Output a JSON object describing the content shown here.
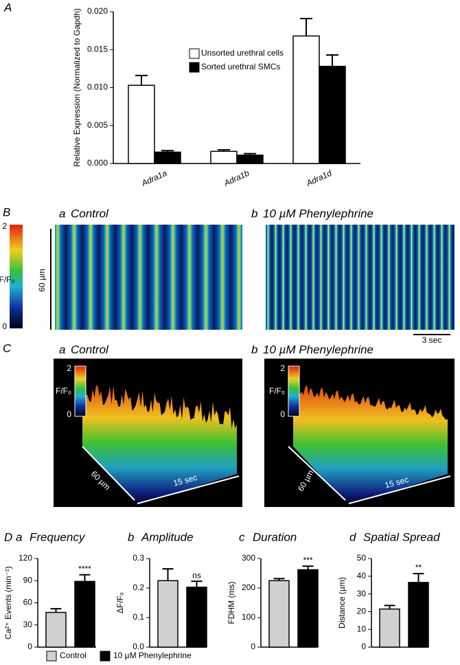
{
  "chart_data": [
    {
      "type": "grouped_bar",
      "panel": "A",
      "ylabel": "Relative Expression (Normalized to Gapdh)",
      "categories": [
        "Adra1a",
        "Adra1b",
        "Adra1d"
      ],
      "series": [
        {
          "name": "Unsorted urethral cells",
          "color": "#ffffff",
          "values": [
            0.0103,
            0.0016,
            0.0168
          ],
          "errors": [
            0.0013,
            0.0002,
            0.0023
          ]
        },
        {
          "name": "Sorted urethral SMCs",
          "color": "#000000",
          "values": [
            0.0015,
            0.0011,
            0.0128
          ],
          "errors": [
            0.0002,
            0.0002,
            0.0015
          ]
        }
      ],
      "ylim": [
        0,
        0.02
      ],
      "yticks": [
        {
          "value": 0,
          "label": "0.000"
        },
        {
          "value": 0.005,
          "label": "0.005"
        },
        {
          "value": 0.01,
          "label": "0.010"
        },
        {
          "value": 0.015,
          "label": "0.015"
        },
        {
          "value": 0.02,
          "label": "0.020"
        }
      ],
      "legend": "upper-center"
    },
    {
      "type": "bar",
      "panel": "D",
      "sublabel": "a",
      "title": "Frequency",
      "ylabel": "Ca²⁺ Events (min⁻¹)",
      "values": [
        47,
        89
      ],
      "errors": [
        5,
        9
      ],
      "annotation": "****",
      "ylim": [
        0,
        120
      ],
      "yticks": [
        0,
        30,
        60,
        90,
        120
      ]
    },
    {
      "type": "bar",
      "sublabel": "b",
      "title": "Amplitude",
      "ylabel": "ΔF/F₀",
      "values": [
        0.225,
        0.203
      ],
      "errors": [
        0.04,
        0.02
      ],
      "annotation": "ns",
      "ylim": [
        0,
        0.3
      ],
      "yticks": [
        {
          "value": 0,
          "label": "0.0"
        },
        0.1,
        0.2,
        0.3
      ]
    },
    {
      "type": "bar",
      "sublabel": "c",
      "title": "Duration",
      "ylabel": "FDHM (ms)",
      "values": [
        225,
        262
      ],
      "errors": [
        7,
        12
      ],
      "annotation": "***",
      "ylim": [
        0,
        300
      ],
      "yticks": [
        0,
        100,
        200,
        300
      ]
    },
    {
      "type": "bar",
      "sublabel": "d",
      "title": "Spatial Spread",
      "ylabel": "Distance (µm)",
      "values": [
        21.5,
        36.5
      ],
      "errors": [
        2,
        5
      ],
      "annotation": "**",
      "ylim": [
        0,
        50
      ],
      "yticks": [
        0,
        10,
        20,
        30,
        40,
        50
      ]
    }
  ],
  "panel_d_legend": [
    {
      "name": "Control",
      "color": "#d0d0d0"
    },
    {
      "name": "10 µM Phenylephrine",
      "color": "#000000"
    }
  ],
  "panels": {
    "B": {
      "letter": "B",
      "a_letter": "a",
      "a_title": "Control",
      "b_letter": "b",
      "b_title": "10 µM Phenylephrine",
      "colorbar_max": "2",
      "colorbar_min": "0",
      "colorbar_label": "F/F₀",
      "scale_y": "60 µm",
      "scale_x": "3 sec"
    },
    "C": {
      "letter": "C",
      "a_letter": "a",
      "a_title": "Control",
      "b_letter": "b",
      "b_title": "10 µM Phenylephrine",
      "colorbar_max": "2",
      "colorbar_min": "0",
      "colorbar_label": "F/F₀",
      "scale_y": "60 µm",
      "scale_x": "15 sec"
    }
  }
}
